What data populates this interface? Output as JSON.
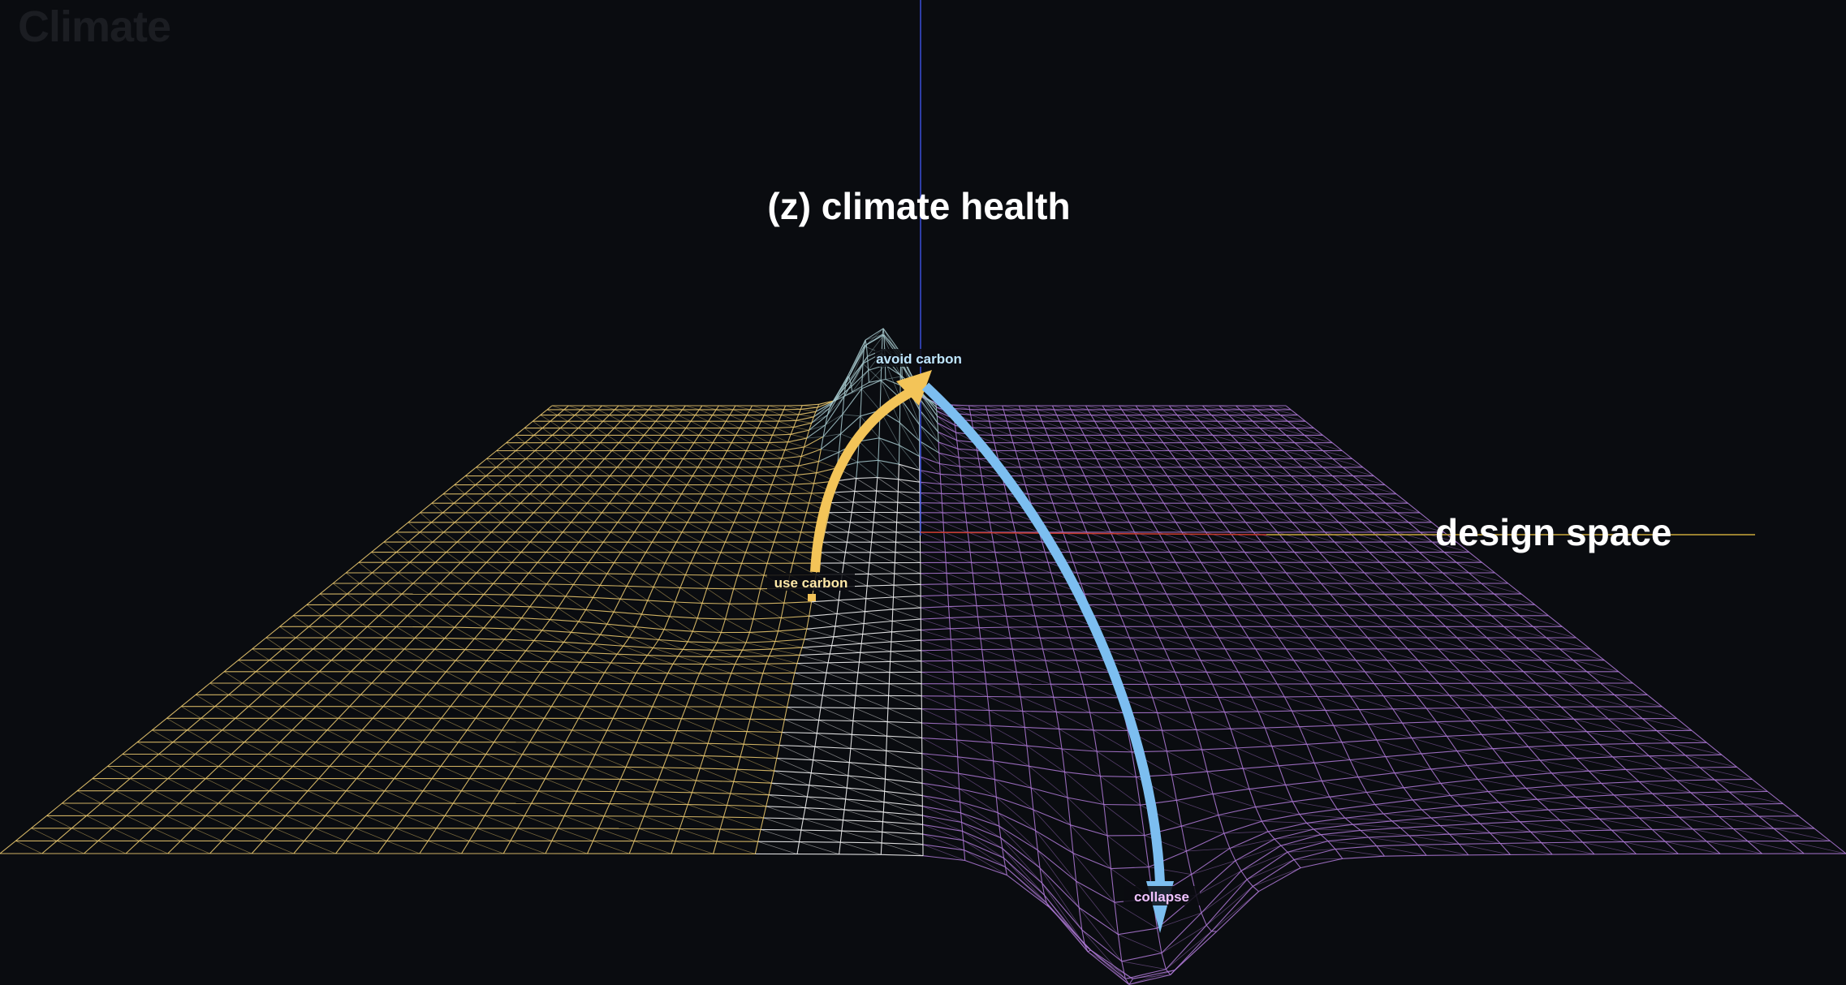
{
  "title": "Climate",
  "axes": {
    "z_label": "(z) climate health",
    "x_label": "design space"
  },
  "markers": {
    "avoid": "avoid carbon",
    "use": "use carbon",
    "collapse": "collapse"
  },
  "colors": {
    "background": "#0a0c10",
    "grid_white": "#ffffff",
    "grid_gold": "#f2cf72",
    "grid_purple": "#b07ad8",
    "grid_teal": "#a6c8cc",
    "arrow_gold": "#f3c458",
    "arrow_blue": "#7cbef0",
    "axis_blue": "#3a4ed8",
    "axis_red": "#c83a2a",
    "axis_gold": "#c9a83a",
    "label_avoid": "#bfe6ff",
    "label_use": "#ffe9a8",
    "label_collapse": "#f0c2ff"
  }
}
